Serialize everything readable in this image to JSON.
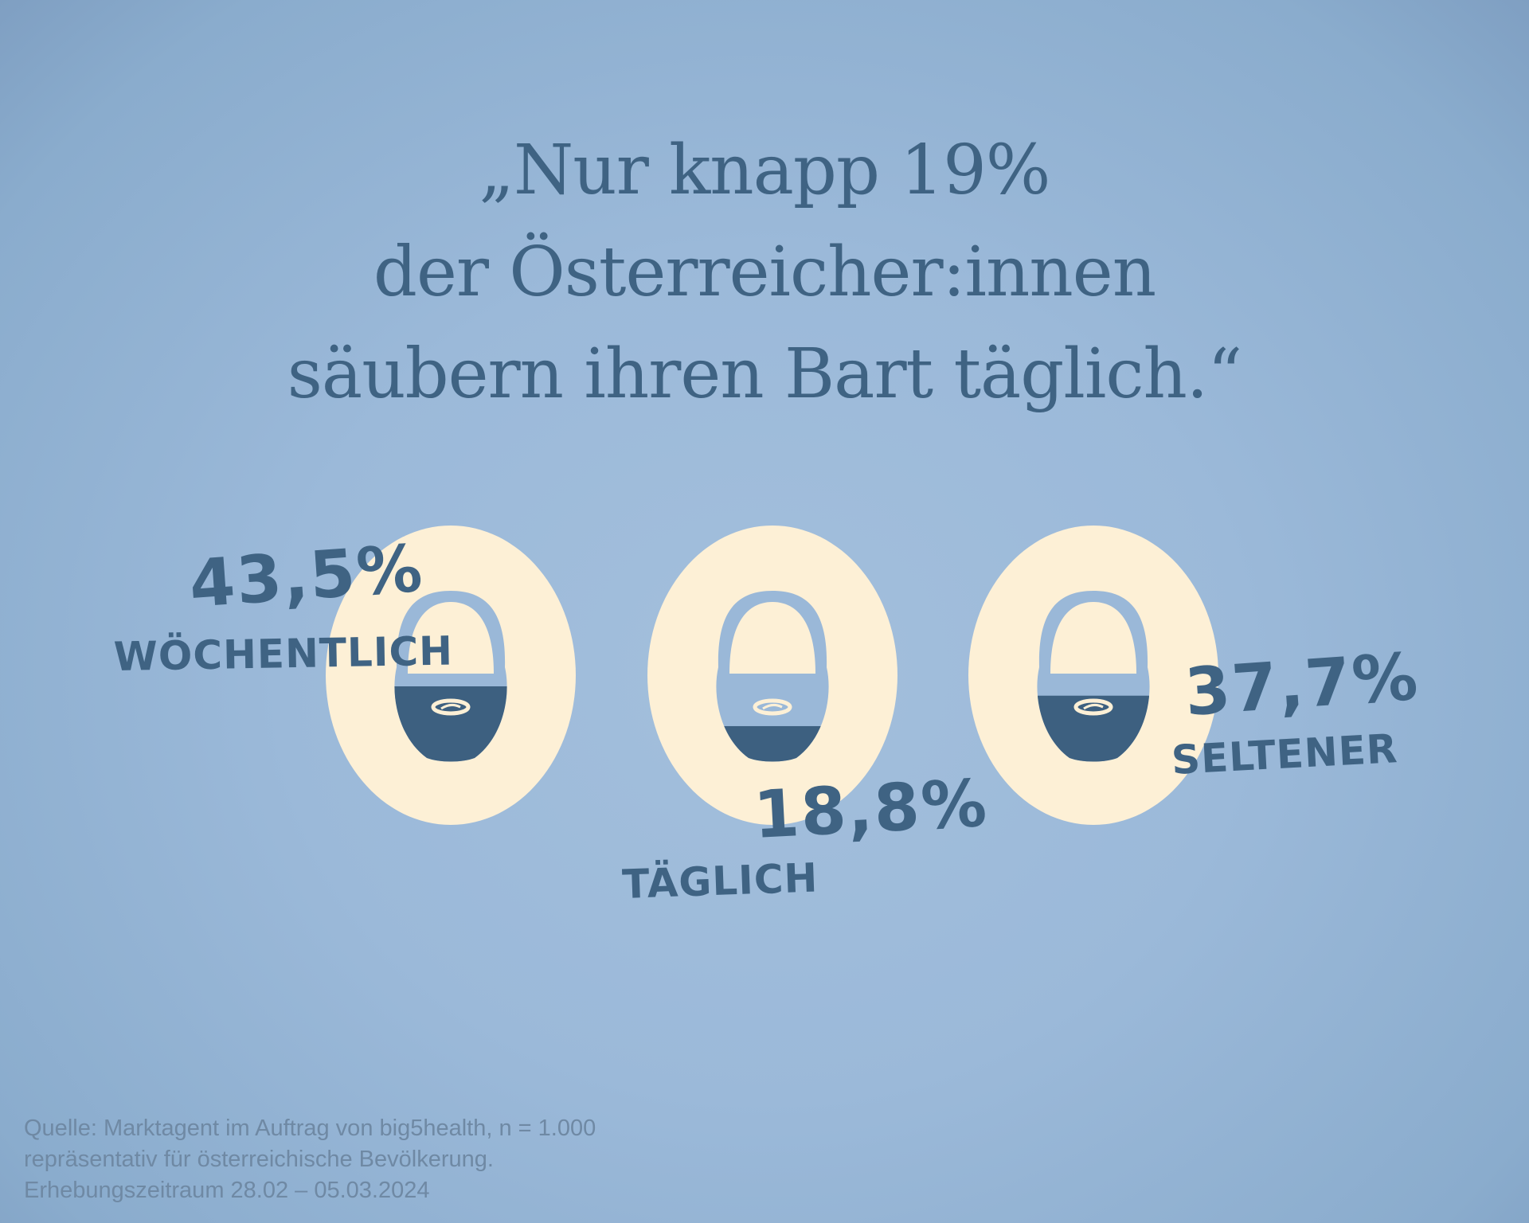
{
  "headline": {
    "line1": "„Nur knapp 19%",
    "line2": "der Österreicher:innen",
    "line3": "säubern ihren Bart täglich.“"
  },
  "chart_data": {
    "type": "pie",
    "categories": [
      "WÖCHENTLICH",
      "TÄGLICH",
      "SELTENER"
    ],
    "values": [
      43.5,
      18.8,
      37.7
    ],
    "value_labels": [
      "43,5%",
      "18,8%",
      "37,7%"
    ],
    "unit": "%"
  },
  "colors": {
    "background": "#9bb9d9",
    "ellipse": "#fdf0d6",
    "beard_dark": "#3d6080",
    "beard_light": "#9ab8d8",
    "text": "#3f6383",
    "source_text": "#6f89a4"
  },
  "icons": [
    "beard-icon",
    "beard-icon",
    "beard-icon"
  ],
  "source": {
    "line1": "Quelle: Marktagent im Auftrag von big5health, n = 1.000",
    "line2": "repräsentativ für österreichische Bevölkerung.",
    "line3": "Erhebungszeitraum 28.02 – 05.03.2024"
  }
}
